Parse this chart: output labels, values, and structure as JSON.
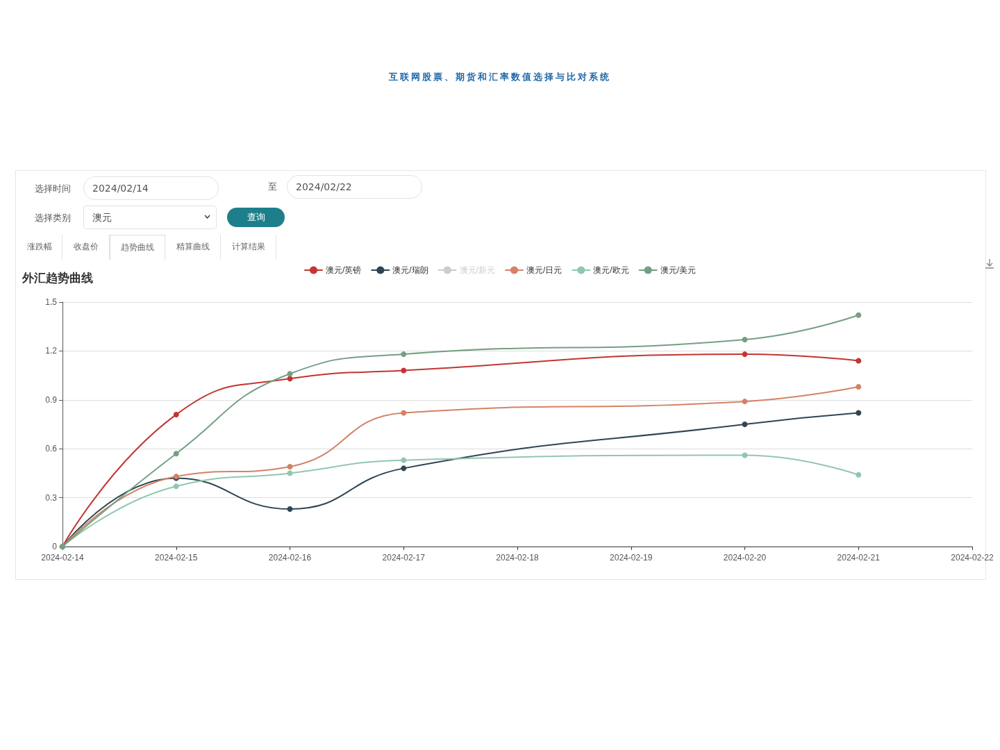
{
  "chart_data": {
    "type": "line",
    "title": "外汇趋势曲线",
    "annotations": [
      "互联网股票、期货和汇率数值选择与比对系统",
      "选择时间",
      "2024/02/14",
      "至",
      "2024/02/22",
      "选择类别",
      "澳元",
      "查询",
      "涨跌幅",
      "收盘价",
      "趋势曲线",
      "精算曲线",
      "计算结果"
    ],
    "x": [
      "2024-02-14",
      "2024-02-15",
      "2024-02-16",
      "2024-02-17",
      "2024-02-20",
      "2024-02-21"
    ],
    "series": [
      {
        "name": "澳元/英镑",
        "color": "#c23531",
        "values": [
          0,
          0.81,
          1.03,
          1.08,
          1.18,
          1.14
        ]
      },
      {
        "name": "澳元/瑞朗",
        "color": "#2f4554",
        "values": [
          0,
          0.42,
          0.23,
          0.48,
          0.75,
          0.82
        ]
      },
      {
        "name": "澳元/新元",
        "color": "#cccccc",
        "values": [
          null,
          null,
          null,
          null,
          null,
          null
        ]
      },
      {
        "name": "澳元/日元",
        "color": "#d48265",
        "values": [
          0,
          0.43,
          0.49,
          0.82,
          0.89,
          0.98
        ]
      },
      {
        "name": "澳元/欧元",
        "color": "#91c7ae",
        "values": [
          0,
          0.37,
          0.45,
          0.53,
          0.56,
          0.44
        ]
      },
      {
        "name": "澳元/美元",
        "color": "#749f83",
        "values": [
          0,
          0.57,
          1.06,
          1.18,
          1.27,
          1.42
        ]
      }
    ],
    "xlim": [
      "2024-02-14",
      "2024-02-22"
    ],
    "xticks": [
      "2024-02-14",
      "2024-02-15",
      "2024-02-16",
      "2024-02-17",
      "2024-02-18",
      "2024-02-19",
      "2024-02-20",
      "2024-02-21",
      "2024-02-22"
    ],
    "ylim": [
      0,
      1.5
    ],
    "yticks": [
      0,
      0.3,
      0.6,
      0.9,
      1.2,
      1.5
    ],
    "grid": "y",
    "legend": "top",
    "marker": "circle",
    "line_style": "solid"
  }
}
